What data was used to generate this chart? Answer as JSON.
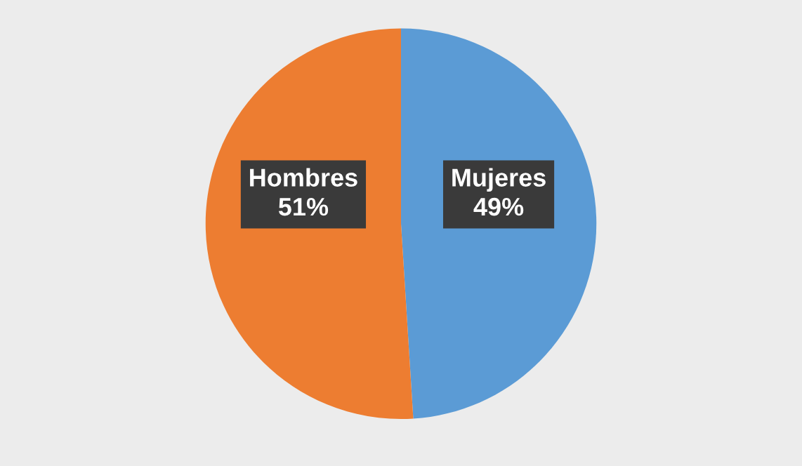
{
  "chart_data": {
    "type": "pie",
    "categories": [
      "Mujeres",
      "Hombres"
    ],
    "values": [
      49,
      51
    ],
    "colors": [
      "#5b9bd5",
      "#ed7d31"
    ],
    "value_labels": [
      "49%",
      "51%"
    ]
  }
}
